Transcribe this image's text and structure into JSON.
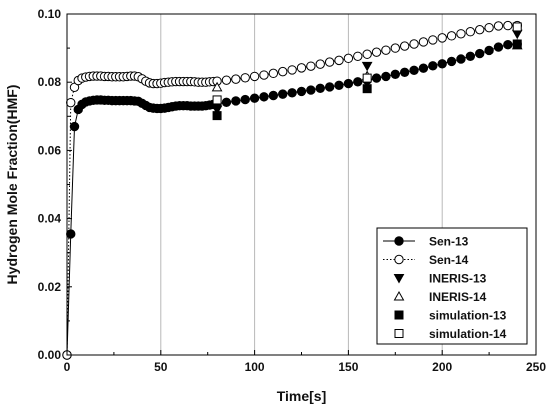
{
  "chart_data": {
    "type": "line",
    "title": "",
    "xlabel": "Time[s]",
    "ylabel": "Hydrogen Mole Fraction(HMF)",
    "xlim": [
      0,
      250
    ],
    "ylim": [
      0,
      0.1
    ],
    "xticks": [
      0,
      50,
      100,
      150,
      200,
      250
    ],
    "yticks": [
      0.0,
      0.02,
      0.04,
      0.06,
      0.08,
      0.1
    ],
    "xtick_labels": [
      "0",
      "50",
      "100",
      "150",
      "200",
      "250"
    ],
    "ytick_labels": [
      "0.00",
      "0.02",
      "0.04",
      "0.06",
      "0.08",
      "0.10"
    ],
    "grid": "vertical",
    "legend_position": "bottom-right",
    "series": [
      {
        "name": "Sen-13",
        "line": "solid",
        "marker": "filled-circle",
        "x": [
          0,
          2,
          4,
          6,
          8,
          10,
          12,
          14,
          16,
          18,
          20,
          22,
          24,
          26,
          28,
          30,
          32,
          34,
          36,
          38,
          40,
          42,
          44,
          46,
          48,
          50,
          52,
          54,
          56,
          58,
          60,
          62,
          64,
          66,
          68,
          70,
          72,
          74,
          76,
          78,
          80,
          85,
          90,
          95,
          100,
          105,
          110,
          115,
          120,
          125,
          130,
          135,
          140,
          145,
          150,
          155,
          160,
          165,
          170,
          175,
          180,
          185,
          190,
          195,
          200,
          205,
          210,
          215,
          220,
          225,
          230,
          235,
          240
        ],
        "y": [
          0.0,
          0.0355,
          0.067,
          0.072,
          0.0735,
          0.0742,
          0.0745,
          0.0747,
          0.0748,
          0.0748,
          0.0747,
          0.0747,
          0.0746,
          0.0746,
          0.0746,
          0.0746,
          0.0746,
          0.0746,
          0.0745,
          0.0744,
          0.0738,
          0.0732,
          0.0726,
          0.0724,
          0.0723,
          0.0723,
          0.0724,
          0.0726,
          0.0728,
          0.073,
          0.0731,
          0.0731,
          0.0731,
          0.073,
          0.073,
          0.073,
          0.073,
          0.0731,
          0.0733,
          0.0735,
          0.0737,
          0.0741,
          0.0745,
          0.0749,
          0.0753,
          0.0757,
          0.0761,
          0.0765,
          0.0769,
          0.0773,
          0.0777,
          0.0782,
          0.0786,
          0.0791,
          0.0796,
          0.0801,
          0.0806,
          0.0812,
          0.0817,
          0.0823,
          0.0829,
          0.0835,
          0.0841,
          0.0848,
          0.0854,
          0.0861,
          0.0868,
          0.0876,
          0.0884,
          0.0893,
          0.0903,
          0.091,
          0.0912
        ]
      },
      {
        "name": "Sen-14",
        "line": "dotted",
        "marker": "open-circle",
        "x": [
          0,
          2,
          4,
          6,
          8,
          10,
          12,
          14,
          16,
          18,
          20,
          22,
          24,
          26,
          28,
          30,
          32,
          34,
          36,
          38,
          40,
          42,
          44,
          46,
          48,
          50,
          52,
          54,
          56,
          58,
          60,
          62,
          64,
          66,
          68,
          70,
          72,
          74,
          76,
          78,
          80,
          85,
          90,
          95,
          100,
          105,
          110,
          115,
          120,
          125,
          130,
          135,
          140,
          145,
          150,
          155,
          160,
          165,
          170,
          175,
          180,
          185,
          190,
          195,
          200,
          205,
          210,
          215,
          220,
          225,
          230,
          235,
          240
        ],
        "y": [
          0.0,
          0.074,
          0.0785,
          0.0805,
          0.0812,
          0.0815,
          0.0817,
          0.0818,
          0.0818,
          0.0818,
          0.0817,
          0.0817,
          0.0816,
          0.0816,
          0.0816,
          0.0816,
          0.0817,
          0.0818,
          0.0818,
          0.0816,
          0.081,
          0.0803,
          0.0798,
          0.0796,
          0.0796,
          0.0797,
          0.0799,
          0.08,
          0.0801,
          0.0802,
          0.0802,
          0.0802,
          0.0802,
          0.0802,
          0.0801,
          0.08,
          0.08,
          0.08,
          0.0801,
          0.0802,
          0.0803,
          0.0806,
          0.0809,
          0.0813,
          0.0817,
          0.0821,
          0.0826,
          0.0831,
          0.0836,
          0.0842,
          0.0847,
          0.0853,
          0.0859,
          0.0864,
          0.087,
          0.0876,
          0.0882,
          0.0888,
          0.0894,
          0.09,
          0.0906,
          0.0912,
          0.0918,
          0.0924,
          0.093,
          0.0936,
          0.0942,
          0.0948,
          0.0954,
          0.096,
          0.0965,
          0.0966,
          0.0966
        ]
      },
      {
        "name": "INERIS-13",
        "line": "none",
        "marker": "filled-triangle-down",
        "x": [
          80,
          160,
          240
        ],
        "y": [
          0.072,
          0.0848,
          0.0942
        ]
      },
      {
        "name": "INERIS-14",
        "line": "none",
        "marker": "open-triangle-up",
        "x": [
          80,
          160,
          240
        ],
        "y": [
          0.0785,
          0.0818,
          0.0908
        ]
      },
      {
        "name": "simulation-13",
        "line": "none",
        "marker": "filled-square",
        "x": [
          80,
          160,
          240
        ],
        "y": [
          0.0702,
          0.0781,
          0.0912
        ]
      },
      {
        "name": "simulation-14",
        "line": "none",
        "marker": "open-square",
        "x": [
          80,
          160,
          240
        ],
        "y": [
          0.0748,
          0.0812,
          0.0962
        ]
      }
    ]
  }
}
